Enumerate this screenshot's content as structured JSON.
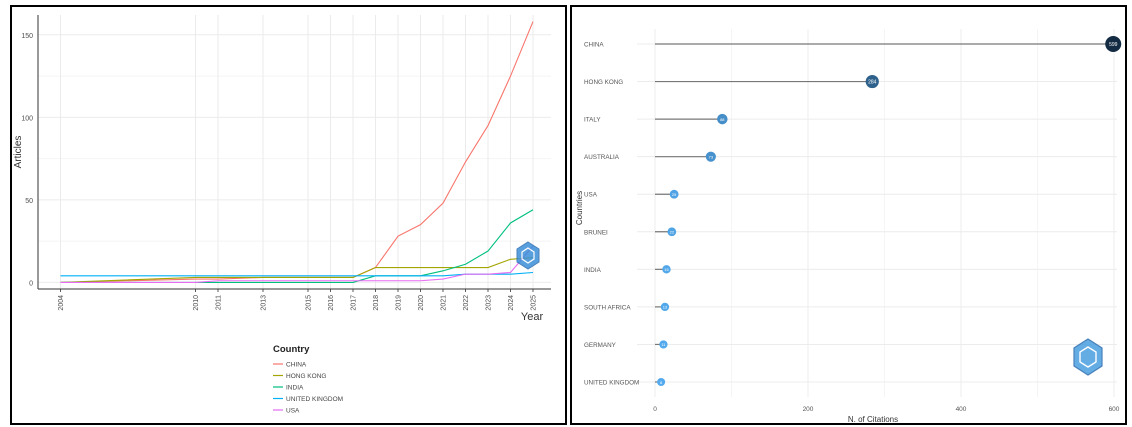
{
  "chart_data": [
    {
      "type": "line",
      "title": "",
      "xlabel": "Year",
      "ylabel": "Articles",
      "x": [
        2004,
        2010,
        2011,
        2013,
        2015,
        2016,
        2017,
        2018,
        2019,
        2020,
        2021,
        2022,
        2023,
        2024,
        2025
      ],
      "x_tick_labels": [
        "2004",
        "2010",
        "2011",
        "2013",
        "2015",
        "2016",
        "2017",
        "2018",
        "2019",
        "2020",
        "2021",
        "2022",
        "2023",
        "2024",
        "2025"
      ],
      "y_ticks": [
        0,
        50,
        100,
        150
      ],
      "ylim": [
        -4,
        162
      ],
      "grid": true,
      "legend_title": "Country",
      "legend_position": "bottom",
      "series": [
        {
          "name": "CHINA",
          "color": "#f8766d",
          "values": [
            0,
            2,
            2,
            3,
            3,
            3,
            3,
            9,
            28,
            35,
            48,
            73,
            95,
            125,
            158
          ]
        },
        {
          "name": "HONG KONG",
          "color": "#a3a500",
          "values": [
            0,
            3,
            3,
            3,
            3,
            3,
            3,
            9,
            9,
            9,
            9,
            9,
            9,
            14,
            15
          ]
        },
        {
          "name": "INDIA",
          "color": "#00bf7d",
          "values": [
            0,
            0,
            0,
            0,
            0,
            0,
            0,
            4,
            4,
            4,
            7,
            11,
            19,
            36,
            44
          ]
        },
        {
          "name": "UNITED KINGDOM",
          "color": "#00b0f6",
          "values": [
            4,
            4,
            4,
            4,
            4,
            4,
            4,
            4,
            4,
            4,
            4,
            5,
            5,
            5,
            6
          ]
        },
        {
          "name": "USA",
          "color": "#e76bf3",
          "values": [
            0,
            0,
            1,
            1,
            1,
            1,
            1,
            1,
            1,
            1,
            2,
            5,
            5,
            6,
            22
          ]
        }
      ]
    },
    {
      "type": "bar",
      "orientation": "horizontal-lollipop",
      "xlabel": "N. of Citations",
      "ylabel": "Countries",
      "xlim": [
        0,
        600
      ],
      "x_ticks": [
        0,
        200,
        400,
        600
      ],
      "grid": true,
      "categories": [
        "CHINA",
        "HONG KONG",
        "ITALY",
        "AUSTRALIA",
        "USA",
        "BRUNEI",
        "INDIA",
        "SOUTH AFRICA",
        "GERMANY",
        "UNITED KINGDOM"
      ],
      "values": [
        599,
        284,
        88,
        73,
        25,
        22,
        15,
        13,
        11,
        8
      ],
      "value_labels": [
        "599",
        "284",
        "88",
        "73",
        "25",
        "22",
        "15",
        "13",
        "11",
        "8"
      ]
    }
  ]
}
